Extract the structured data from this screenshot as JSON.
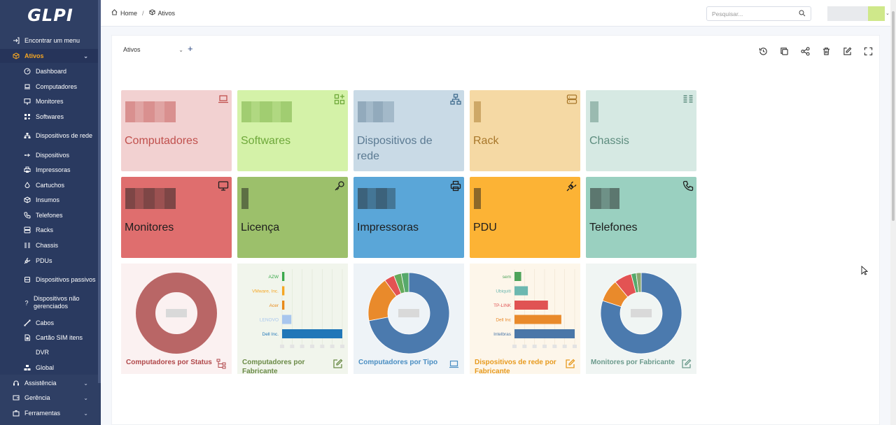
{
  "app": {
    "logo_text": "GLPI"
  },
  "sidebar": {
    "find_menu": "Encontrar um menu",
    "ativos": "Ativos",
    "items": [
      {
        "label": "Dashboard",
        "icon": "dashboard-icon"
      },
      {
        "label": "Computadores",
        "icon": "laptop-icon"
      },
      {
        "label": "Monitores",
        "icon": "monitor-icon"
      },
      {
        "label": "Softwares",
        "icon": "apps-icon"
      },
      {
        "label": "Dispositivos de rede",
        "icon": "network-icon"
      },
      {
        "label": "Dispositivos",
        "icon": "usb-icon"
      },
      {
        "label": "Impressoras",
        "icon": "printer-icon"
      },
      {
        "label": "Cartuchos",
        "icon": "droplet-icon"
      },
      {
        "label": "Insumos",
        "icon": "box-icon"
      },
      {
        "label": "Telefones",
        "icon": "phone-icon"
      },
      {
        "label": "Racks",
        "icon": "server-icon"
      },
      {
        "label": "Chassis",
        "icon": "columns-icon"
      },
      {
        "label": "PDUs",
        "icon": "plug-icon"
      },
      {
        "label": "Dispositivos passivos",
        "icon": "device-icon"
      },
      {
        "label": "Dispositivos não gerenciados",
        "icon": "question-icon"
      },
      {
        "label": "Cabos",
        "icon": "cable-icon"
      },
      {
        "label": "Cartão SIM itens",
        "icon": "simcard-icon"
      },
      {
        "label": "DVR",
        "icon": ""
      },
      {
        "label": "Global",
        "icon": "global-icon"
      }
    ],
    "assistencia": "Assistência",
    "gerencia": "Gerência",
    "ferramentas": "Ferramentas"
  },
  "header": {
    "breadcrumb_home": "Home",
    "breadcrumb_sep": "/",
    "breadcrumb_current": "Ativos",
    "search_placeholder": "Pesquisar..."
  },
  "dashboard": {
    "selected": "Ativos",
    "add": "+"
  },
  "tiles": [
    {
      "label": "Computadores",
      "icon": "laptop-icon",
      "bg": "#f2d1d1",
      "fg": "#c0504d"
    },
    {
      "label": "Softwares",
      "icon": "apps-add-icon",
      "bg": "#d4f2a8",
      "fg": "#6ea83a"
    },
    {
      "label": "Dispositivos de rede",
      "icon": "network-icon",
      "bg": "#c9dae6",
      "fg": "#5b7a92"
    },
    {
      "label": "Rack",
      "icon": "server-icon",
      "bg": "#f5d9a4",
      "fg": "#a8772a"
    },
    {
      "label": "Chassis",
      "icon": "columns-icon",
      "bg": "#d6e9e3",
      "fg": "#5d8c7e"
    },
    {
      "label": "Monitores",
      "icon": "monitor-icon",
      "bg": "#df6e6e",
      "fg": "#1e1e1e"
    },
    {
      "label": "Licença",
      "icon": "key-icon",
      "bg": "#9cc06b",
      "fg": "#1e1e1e"
    },
    {
      "label": "Impressoras",
      "icon": "printer-icon",
      "bg": "#5aa6d8",
      "fg": "#1e1e1e"
    },
    {
      "label": "PDU",
      "icon": "plug-icon",
      "bg": "#fcb335",
      "fg": "#1e1e1e"
    },
    {
      "label": "Telefones",
      "icon": "phone-icon",
      "bg": "#9ad0c0",
      "fg": "#1e1e1e"
    }
  ],
  "charts": {
    "status_title": "Computadores por Status",
    "fabricante_title": "Computadores por Fabricante",
    "tipo_title": "Computadores por Tipo",
    "rede_title": "Dispositivos de rede por Fabricante",
    "monitores_title": "Monitores por Fabricante"
  },
  "chart_data": [
    {
      "type": "pie",
      "title": "Computadores por Status",
      "slices": [
        {
          "value": 1,
          "color": "#b96666"
        }
      ]
    },
    {
      "type": "bar",
      "title": "Computadores por Fabricante",
      "categories": [
        "AZW",
        "VMware, Inc.",
        "Acer",
        "LENOVO",
        "Dell Inc."
      ],
      "values": [
        1,
        1,
        1,
        4,
        26
      ],
      "colors": [
        "#3aa84b",
        "#f5a623",
        "#e88a1a",
        "#a8c6ee",
        "#2177b8"
      ]
    },
    {
      "type": "pie",
      "title": "Computadores por Tipo",
      "slices": [
        {
          "value": 72,
          "color": "#4b7aae"
        },
        {
          "value": 18,
          "color": "#e98a2b"
        },
        {
          "value": 4,
          "color": "#e35353"
        },
        {
          "value": 3,
          "color": "#66aa5b"
        },
        {
          "value": 3,
          "color": "#56a96b"
        }
      ]
    },
    {
      "type": "bar",
      "title": "Dispositivos de rede por Fabricante",
      "categories": [
        "sem",
        "Ubiquiti",
        "TP-LINK",
        "Dell Inc",
        "Intelbras"
      ],
      "values": [
        1,
        2,
        5,
        7,
        9
      ],
      "colors": [
        "#4ea35a",
        "#6cb8b0",
        "#e05353",
        "#e98a2b",
        "#4a77a8"
      ]
    },
    {
      "type": "pie",
      "title": "Monitores por Fabricante",
      "slices": [
        {
          "value": 80,
          "color": "#4b7aae"
        },
        {
          "value": 9,
          "color": "#e98a2b"
        },
        {
          "value": 7,
          "color": "#e35353"
        },
        {
          "value": 2,
          "color": "#56a96b"
        },
        {
          "value": 2,
          "color": "#8aa870"
        }
      ]
    }
  ]
}
